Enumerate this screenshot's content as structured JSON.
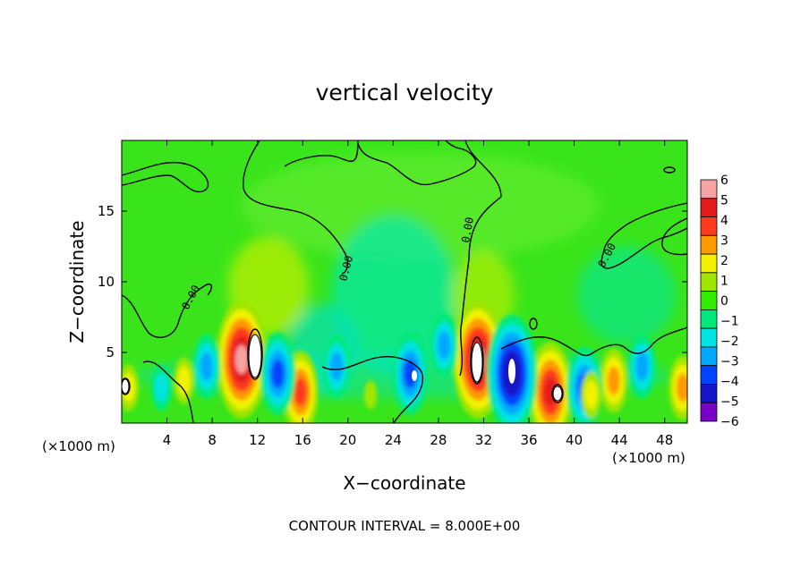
{
  "chart_data": {
    "type": "heatmap",
    "title": "vertical velocity",
    "xlabel": "X−coordinate",
    "ylabel": "Z−coordinate",
    "x_unit_left": "(×1000 m)",
    "x_unit_right": "(×1000 m)",
    "xlim": [
      0,
      50
    ],
    "ylim": [
      0,
      20
    ],
    "x_ticks": [
      4,
      8,
      12,
      16,
      20,
      24,
      28,
      32,
      36,
      40,
      44,
      48
    ],
    "x_tick_labels": [
      "4",
      "8",
      "12",
      "16",
      "20",
      "24",
      "28",
      "32",
      "36",
      "40",
      "44",
      "48"
    ],
    "y_ticks": [
      5,
      10,
      15
    ],
    "y_tick_labels": [
      "5",
      "10",
      "15"
    ],
    "colorbar": {
      "values": [
        6,
        5,
        4,
        3,
        2,
        1,
        0,
        -1,
        -2,
        -3,
        -4,
        -5,
        -6
      ],
      "labels": [
        "6",
        "5",
        "4",
        "3",
        "2",
        "1",
        "0",
        "−1",
        "−2",
        "−3",
        "−4",
        "−5",
        "−6"
      ],
      "colors": [
        "#f6a3a3",
        "#e31b1b",
        "#ff3a1a",
        "#ff9a00",
        "#f2f200",
        "#9ee600",
        "#33ee00",
        "#00e87a",
        "#00e3e3",
        "#00a8ff",
        "#0044ff",
        "#1414c8",
        "#7a00c8"
      ]
    },
    "contour_labels": [
      "0.00",
      "0.00",
      "0.00",
      "0.00"
    ],
    "footnote": "CONTOUR INTERVAL = 8.000E+00",
    "cells": [
      {
        "x": 0.6,
        "z": 2.5,
        "w": 2
      },
      {
        "x": 10.6,
        "z": 4.5,
        "w": 6
      },
      {
        "x": 15.8,
        "z": 2.2,
        "w": 4
      },
      {
        "x": 31.5,
        "z": 4.5,
        "w": 6
      },
      {
        "x": 37.9,
        "z": 2.2,
        "w": 5
      },
      {
        "x": 43.5,
        "z": 3.0,
        "w": 3
      },
      {
        "x": 49.6,
        "z": 2.5,
        "w": 3
      },
      {
        "x": 3.5,
        "z": 2.5,
        "w": -2
      },
      {
        "x": 7.5,
        "z": 4.0,
        "w": -3
      },
      {
        "x": 13.8,
        "z": 3.5,
        "w": -4
      },
      {
        "x": 19.0,
        "z": 4.0,
        "w": -3
      },
      {
        "x": 25.5,
        "z": 3.5,
        "w": -4
      },
      {
        "x": 28.5,
        "z": 5.5,
        "w": -3
      },
      {
        "x": 34.5,
        "z": 3.5,
        "w": -6
      },
      {
        "x": 40.9,
        "z": 2.5,
        "w": -4
      },
      {
        "x": 46.0,
        "z": 4.0,
        "w": -3
      },
      {
        "x": 5.5,
        "z": 3.0,
        "w": 2
      },
      {
        "x": 22.0,
        "z": 2.0,
        "w": 1
      },
      {
        "x": 41.5,
        "z": 2.0,
        "w": 2
      }
    ]
  }
}
